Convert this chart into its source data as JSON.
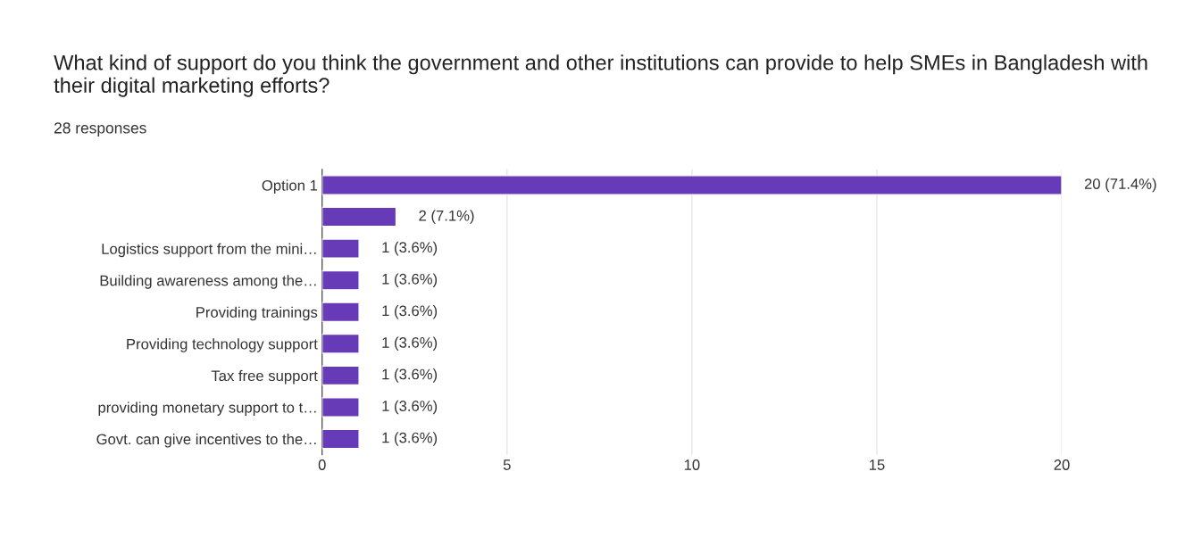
{
  "chart_data": {
    "type": "bar",
    "orientation": "horizontal",
    "title": "What kind of support do you think the government and other institutions can provide to help SMEs in Bangladesh with their digital marketing efforts?",
    "subtitle": "28 responses",
    "categories": [
      "Option 1",
      null,
      "Logistics support from the mini…",
      "Building awareness among the…",
      "Providing trainings",
      "Providing technology support",
      "Tax free support",
      "providing monetary support to t…",
      "Govt. can give incentives to the…"
    ],
    "values": [
      20,
      2,
      1,
      1,
      1,
      1,
      1,
      1,
      1
    ],
    "value_labels": [
      "20 (71.4%)",
      "2 (7.1%)",
      "1 (3.6%)",
      "1 (3.6%)",
      "1 (3.6%)",
      "1 (3.6%)",
      "1 (3.6%)",
      "1 (3.6%)",
      "1 (3.6%)"
    ],
    "color": "#673ab7",
    "xlim": [
      0,
      20
    ],
    "xticks": [
      0,
      5,
      10,
      15,
      20
    ],
    "grid": "x",
    "legend": false
  }
}
